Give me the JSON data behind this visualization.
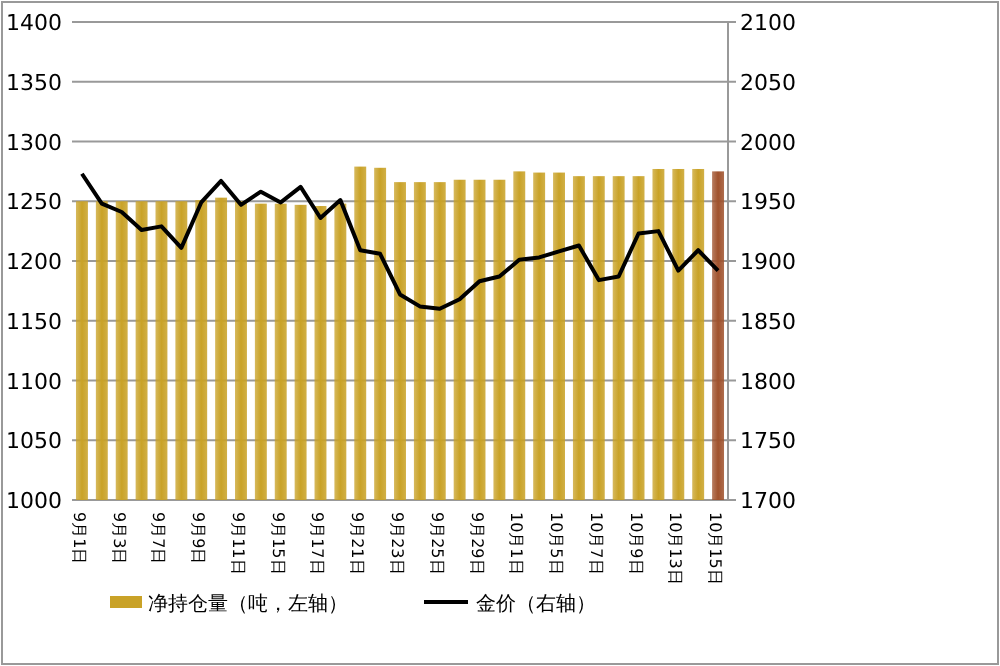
{
  "chart_data": {
    "type": "bar",
    "categories": [
      "9月1日",
      null,
      "9月3日",
      null,
      "9月7日",
      null,
      "9月9日",
      null,
      "9月11日",
      null,
      "9月15日",
      null,
      "9月17日",
      null,
      "9月21日",
      null,
      "9月23日",
      null,
      "9月25日",
      null,
      "9月29日",
      null,
      "10月1日",
      null,
      "10月5日",
      null,
      "10月7日",
      null,
      "10月9日",
      null,
      "10月13日",
      null,
      "10月15日"
    ],
    "series": [
      {
        "name": "净持仓量（吨，左轴）",
        "color": "#c9a227",
        "colors": [
          "#c9a227",
          "#c9a227",
          "#c9a227",
          "#c9a227",
          "#c9a227",
          "#c9a227",
          "#c9a227",
          "#c9a227",
          "#c9a227",
          "#c9a227",
          "#c9a227",
          "#c9a227",
          "#c9a227",
          "#c9a227",
          "#c9a227",
          "#c9a227",
          "#c9a227",
          "#c9a227",
          "#c9a227",
          "#c9a227",
          "#c9a227",
          "#c9a227",
          "#c9a227",
          "#c9a227",
          "#c9a227",
          "#c9a227",
          "#c9a227",
          "#c9a227",
          "#c9a227",
          "#c9a227",
          "#c9a227",
          "#c9a227",
          "#a0522d"
        ],
        "values": [
          1250,
          1250,
          1250,
          1250,
          1250,
          1250,
          1251,
          1253,
          1250,
          1248,
          1248,
          1247,
          1246,
          1248,
          1279,
          1278,
          1266,
          1266,
          1266,
          1268,
          1268,
          1268,
          1275,
          1274,
          1274,
          1271,
          1271,
          1271,
          1271,
          1277,
          1277,
          1277,
          1275
        ]
      },
      {
        "name": "金价（右轴）",
        "type": "line",
        "axis": "y2",
        "color": "#000000",
        "values": [
          1973,
          1948,
          1941,
          1926,
          1929,
          1911,
          1949,
          1967,
          1947,
          1958,
          1949,
          1962,
          1936,
          1951,
          1909,
          1906,
          1872,
          1862,
          1860,
          1868,
          1883,
          1887,
          1901,
          1903,
          1908,
          1913,
          1884,
          1887,
          1923,
          1925,
          1892,
          1909,
          1892
        ]
      }
    ],
    "ylim": [
      1000,
      1400
    ],
    "yticks": [
      1000,
      1050,
      1100,
      1150,
      1200,
      1250,
      1300,
      1350,
      1400
    ],
    "y2lim": [
      1700,
      2100
    ],
    "y2ticks": [
      1700,
      1750,
      1800,
      1850,
      1900,
      1950,
      2000,
      2050,
      2100
    ],
    "grid": "y",
    "legend": "bottom"
  }
}
